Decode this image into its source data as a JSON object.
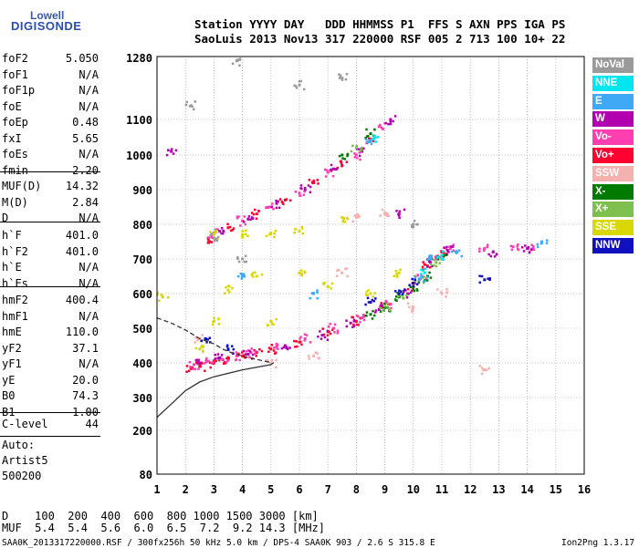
{
  "logo": {
    "line1": "Lowell",
    "line2": "DIGISONDE"
  },
  "header": {
    "line1": "Station YYYY DAY   DDD HHMMSS P1  FFS S AXN PPS IGA PS",
    "line2": "SaoLuis 2013 Nov13 317 220000 RSF 005 2 713 100 10+ 22"
  },
  "sidebar": {
    "group1": [
      {
        "name": "foF2",
        "value": "5.050"
      },
      {
        "name": "foF1",
        "value": "N/A"
      },
      {
        "name": "foF1p",
        "value": "N/A"
      },
      {
        "name": "foE",
        "value": "N/A"
      },
      {
        "name": "foEp",
        "value": "0.48"
      },
      {
        "name": "fxI",
        "value": "5.65"
      },
      {
        "name": "foEs",
        "value": "N/A"
      },
      {
        "name": "fmin",
        "value": "2.20"
      }
    ],
    "group2": [
      {
        "name": "MUF(D)",
        "value": "14.32"
      },
      {
        "name": "M(D)",
        "value": "2.84"
      },
      {
        "name": "D",
        "value": "N/A"
      }
    ],
    "group3": [
      {
        "name": "h`F",
        "value": "401.0"
      },
      {
        "name": "h`F2",
        "value": "401.0"
      },
      {
        "name": "h`E",
        "value": "N/A"
      },
      {
        "name": "h`Es",
        "value": "N/A"
      }
    ],
    "group4": [
      {
        "name": "hmF2",
        "value": "400.4"
      },
      {
        "name": "hmF1",
        "value": "N/A"
      },
      {
        "name": "hmE",
        "value": "110.0"
      },
      {
        "name": "yF2",
        "value": "37.1"
      },
      {
        "name": "yF1",
        "value": "N/A"
      },
      {
        "name": "yE",
        "value": "20.0"
      },
      {
        "name": "B0",
        "value": "74.3"
      },
      {
        "name": "B1",
        "value": "1.00"
      }
    ],
    "clevel": {
      "name": "C-level",
      "value": "44"
    },
    "auto": [
      "Auto:",
      "Artist5",
      "500200"
    ]
  },
  "legend": [
    {
      "label": "NoVal",
      "color": "#9a9a9a"
    },
    {
      "label": "NNE",
      "color": "#00e5ee"
    },
    {
      "label": "E",
      "color": "#3fa9f5"
    },
    {
      "label": "W",
      "color": "#b000b0"
    },
    {
      "label": "Vo-",
      "color": "#ff3fb0"
    },
    {
      "label": "Vo+",
      "color": "#ff0030"
    },
    {
      "label": "SSW",
      "color": "#f5b0b0"
    },
    {
      "label": "X-",
      "color": "#007a00"
    },
    {
      "label": "X+",
      "color": "#7fbf50"
    },
    {
      "label": "SSE",
      "color": "#d8d800"
    },
    {
      "label": "NNW",
      "color": "#1010c0"
    }
  ],
  "bottom": {
    "d_line": "D    100  200  400  600  800 1000 1500 3000 [km]",
    "muf_line": "MUF  5.4  5.4  5.6  6.0  6.5  7.2  9.2 14.3 [MHz]"
  },
  "footer": {
    "left": "SAA0K_2013317220000.RSF / 300fx256h 50 kHz 5.0 km / DPS-4 SAA0K 903 / 2.6 S 315.8 E",
    "right": "Ion2Png 1.3.17"
  },
  "chart_data": {
    "type": "scatter",
    "x_ticks": [
      1,
      2,
      3,
      4,
      5,
      6,
      7,
      8,
      9,
      10,
      11,
      12,
      13,
      14,
      15,
      16
    ],
    "y_ticks": [
      80,
      200,
      300,
      400,
      500,
      600,
      700,
      800,
      900,
      1000,
      1100,
      1280
    ],
    "xlim": [
      1,
      16
    ],
    "ylim": [
      80,
      1280
    ],
    "grid": true,
    "legend_position": "right",
    "series": [
      {
        "name": "Vo+",
        "color": "#ff0030",
        "points": [
          [
            2.2,
            385
          ],
          [
            2.5,
            390
          ],
          [
            3.0,
            400
          ],
          [
            3.5,
            410
          ],
          [
            4.0,
            420
          ],
          [
            4.5,
            430
          ],
          [
            5.0,
            440
          ],
          [
            6.0,
            460
          ],
          [
            7.0,
            490
          ],
          [
            8.0,
            520
          ],
          [
            9.0,
            560
          ],
          [
            10.0,
            620
          ],
          [
            10.5,
            680
          ],
          [
            11.0,
            720
          ],
          [
            2.8,
            760
          ],
          [
            3.5,
            790
          ],
          [
            4.5,
            830
          ],
          [
            5.5,
            870
          ],
          [
            6.5,
            920
          ],
          [
            7.5,
            970
          ],
          [
            8.5,
            1040
          ]
        ]
      },
      {
        "name": "Vo-",
        "color": "#ff3fb0",
        "points": [
          [
            2.3,
            395
          ],
          [
            2.8,
            405
          ],
          [
            3.3,
            410
          ],
          [
            3.8,
            420
          ],
          [
            4.3,
            430
          ],
          [
            5.2,
            445
          ],
          [
            6.2,
            470
          ],
          [
            7.2,
            500
          ],
          [
            8.2,
            530
          ],
          [
            9.2,
            570
          ],
          [
            10.3,
            650
          ],
          [
            10.8,
            700
          ],
          [
            11.3,
            730
          ],
          [
            12.5,
            730
          ],
          [
            13.5,
            735
          ],
          [
            14.2,
            730
          ],
          [
            3.0,
            775
          ],
          [
            4.0,
            810
          ],
          [
            5.0,
            850
          ],
          [
            6.0,
            890
          ],
          [
            7.0,
            950
          ],
          [
            8.0,
            1000
          ],
          [
            8.8,
            1080
          ]
        ]
      },
      {
        "name": "W",
        "color": "#b000b0",
        "points": [
          [
            2.5,
            400
          ],
          [
            3.2,
            415
          ],
          [
            4.2,
            425
          ],
          [
            5.5,
            450
          ],
          [
            6.8,
            480
          ],
          [
            7.8,
            515
          ],
          [
            8.8,
            555
          ],
          [
            9.8,
            600
          ],
          [
            10.6,
            690
          ],
          [
            11.2,
            725
          ],
          [
            12.8,
            720
          ],
          [
            14.0,
            730
          ],
          [
            3.2,
            780
          ],
          [
            4.2,
            815
          ],
          [
            5.2,
            860
          ],
          [
            6.2,
            900
          ],
          [
            7.2,
            960
          ],
          [
            8.2,
            1010
          ],
          [
            9.2,
            1100
          ],
          [
            1.5,
            1010
          ],
          [
            9.5,
            830
          ]
        ]
      },
      {
        "name": "X-",
        "color": "#007a00",
        "points": [
          [
            8.5,
            540
          ],
          [
            9.0,
            560
          ],
          [
            9.5,
            590
          ],
          [
            10.0,
            620
          ],
          [
            10.5,
            650
          ],
          [
            11.0,
            700
          ],
          [
            7.5,
            1000
          ],
          [
            8.5,
            1060
          ]
        ]
      },
      {
        "name": "X+",
        "color": "#7fbf50",
        "points": [
          [
            9.0,
            565
          ],
          [
            9.6,
            595
          ],
          [
            10.2,
            640
          ],
          [
            10.8,
            690
          ],
          [
            8.0,
            1020
          ]
        ]
      },
      {
        "name": "SSE",
        "color": "#d8d800",
        "points": [
          [
            2.5,
            440
          ],
          [
            3.0,
            520
          ],
          [
            3.5,
            610
          ],
          [
            4.5,
            650
          ],
          [
            5.0,
            520
          ],
          [
            6.0,
            660
          ],
          [
            7.0,
            620
          ],
          [
            3.0,
            770
          ],
          [
            4.0,
            770
          ],
          [
            5.0,
            775
          ],
          [
            6.0,
            780
          ],
          [
            7.5,
            820
          ],
          [
            8.5,
            600
          ],
          [
            9.5,
            660
          ],
          [
            1.2,
            590
          ]
        ]
      },
      {
        "name": "SSW",
        "color": "#f5b0b0",
        "points": [
          [
            2.5,
            470
          ],
          [
            5.0,
            400
          ],
          [
            6.5,
            420
          ],
          [
            7.5,
            660
          ],
          [
            8.0,
            820
          ],
          [
            9.0,
            830
          ],
          [
            10.0,
            560
          ],
          [
            11.0,
            600
          ],
          [
            12.5,
            380
          ]
        ]
      },
      {
        "name": "E",
        "color": "#3fa9f5",
        "points": [
          [
            4.0,
            650
          ],
          [
            6.5,
            600
          ],
          [
            8.5,
            1040
          ],
          [
            10.2,
            640
          ],
          [
            10.6,
            700
          ],
          [
            11.5,
            720
          ],
          [
            14.5,
            745
          ]
        ]
      },
      {
        "name": "NNE",
        "color": "#00e5ee",
        "points": [
          [
            8.6,
            1045
          ],
          [
            10.4,
            660
          ],
          [
            11.0,
            710
          ]
        ]
      },
      {
        "name": "NNW",
        "color": "#1010c0",
        "points": [
          [
            10.0,
            630
          ],
          [
            9.5,
            600
          ],
          [
            8.5,
            575
          ],
          [
            12.5,
            640
          ],
          [
            3.5,
            440
          ],
          [
            2.7,
            470
          ]
        ]
      },
      {
        "name": "NoVal",
        "color": "#9a9a9a",
        "points": [
          [
            3.0,
            760
          ],
          [
            4.0,
            700
          ],
          [
            3.8,
            1270
          ],
          [
            6.0,
            1200
          ],
          [
            7.5,
            1220
          ],
          [
            10.0,
            800
          ],
          [
            2.2,
            1140
          ]
        ]
      }
    ],
    "profile_curves": [
      {
        "points": [
          [
            1,
            240
          ],
          [
            1.5,
            280
          ],
          [
            2,
            320
          ],
          [
            2.5,
            345
          ],
          [
            3,
            360
          ],
          [
            4,
            380
          ],
          [
            5,
            395
          ],
          [
            5.1,
            401
          ]
        ]
      },
      {
        "points": [
          [
            1,
            530
          ],
          [
            1.5,
            515
          ],
          [
            2,
            495
          ],
          [
            2.5,
            470
          ],
          [
            3,
            455
          ],
          [
            3.3,
            440
          ],
          [
            3.6,
            430
          ],
          [
            4,
            420
          ],
          [
            4.5,
            410
          ],
          [
            5,
            401
          ]
        ]
      }
    ]
  }
}
